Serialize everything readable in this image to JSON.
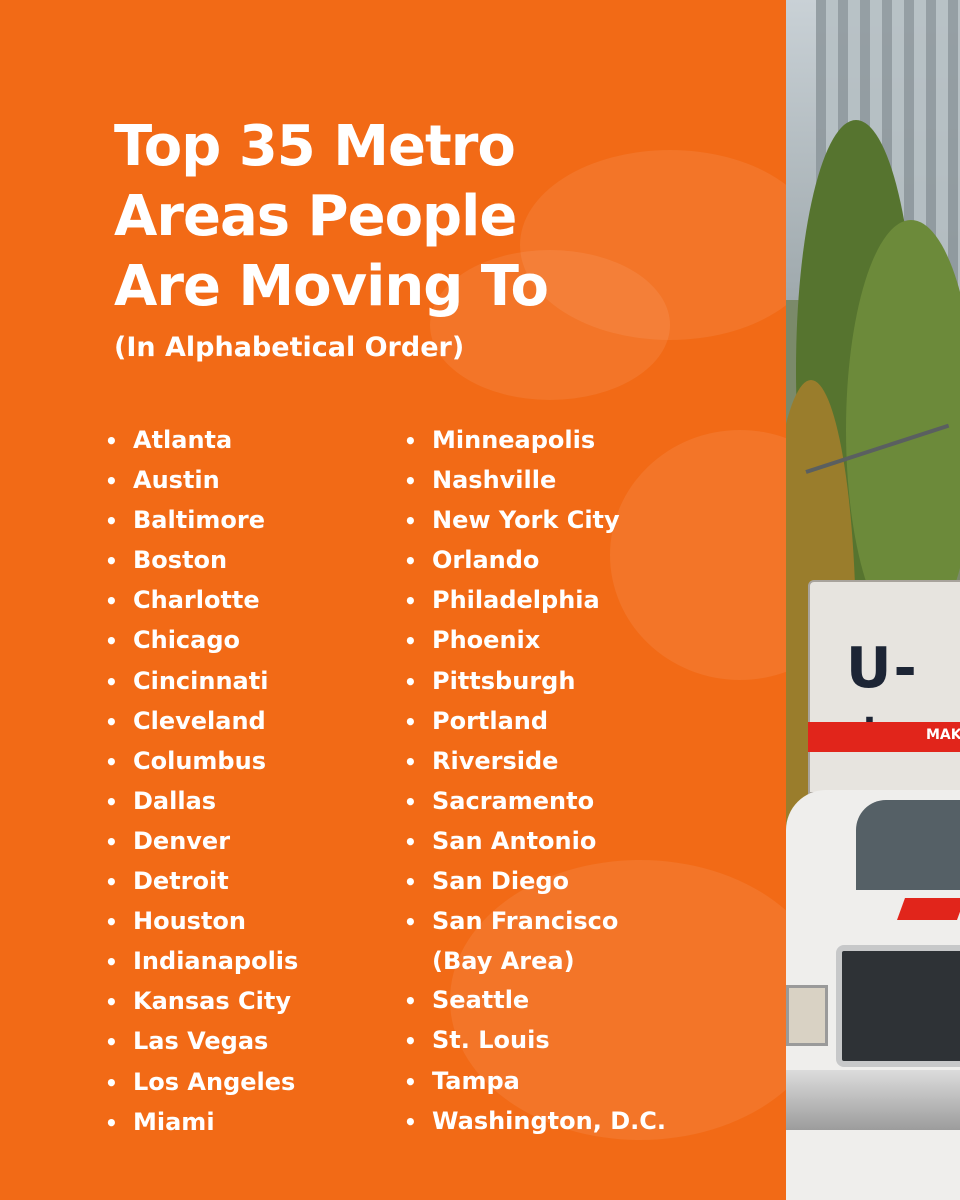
{
  "title_lines": [
    "Top 35 Metro",
    "Areas People",
    "Are Moving To"
  ],
  "subtitle": "(In Alphabetical Order)",
  "bullet": "•",
  "left_column": [
    "Atlanta",
    "Austin",
    "Baltimore",
    "Boston",
    "Charlotte",
    "Chicago",
    "Cincinnati",
    "Cleveland",
    "Columbus",
    "Dallas",
    "Denver",
    "Detroit",
    "Houston",
    "Indianapolis",
    "Kansas City",
    "Las Vegas",
    "Los Angeles",
    "Miami"
  ],
  "right_column": [
    "Minneapolis",
    "Nashville",
    "New York City",
    "Orlando",
    "Philadelphia",
    "Phoenix",
    "Pittsburgh",
    "Portland",
    "Riverside",
    "Sacramento",
    "San Antonio",
    "San Diego",
    "San Francisco",
    "(Bay Area)",
    "Seattle",
    "St. Louis",
    "Tampa",
    "Washington, D.C."
  ],
  "truck": {
    "logo_text": "U-+",
    "stripe_text": "MAK"
  },
  "colors": {
    "panel": "#f26a16",
    "text": "#ffffff",
    "truck_red": "#e1251b"
  }
}
